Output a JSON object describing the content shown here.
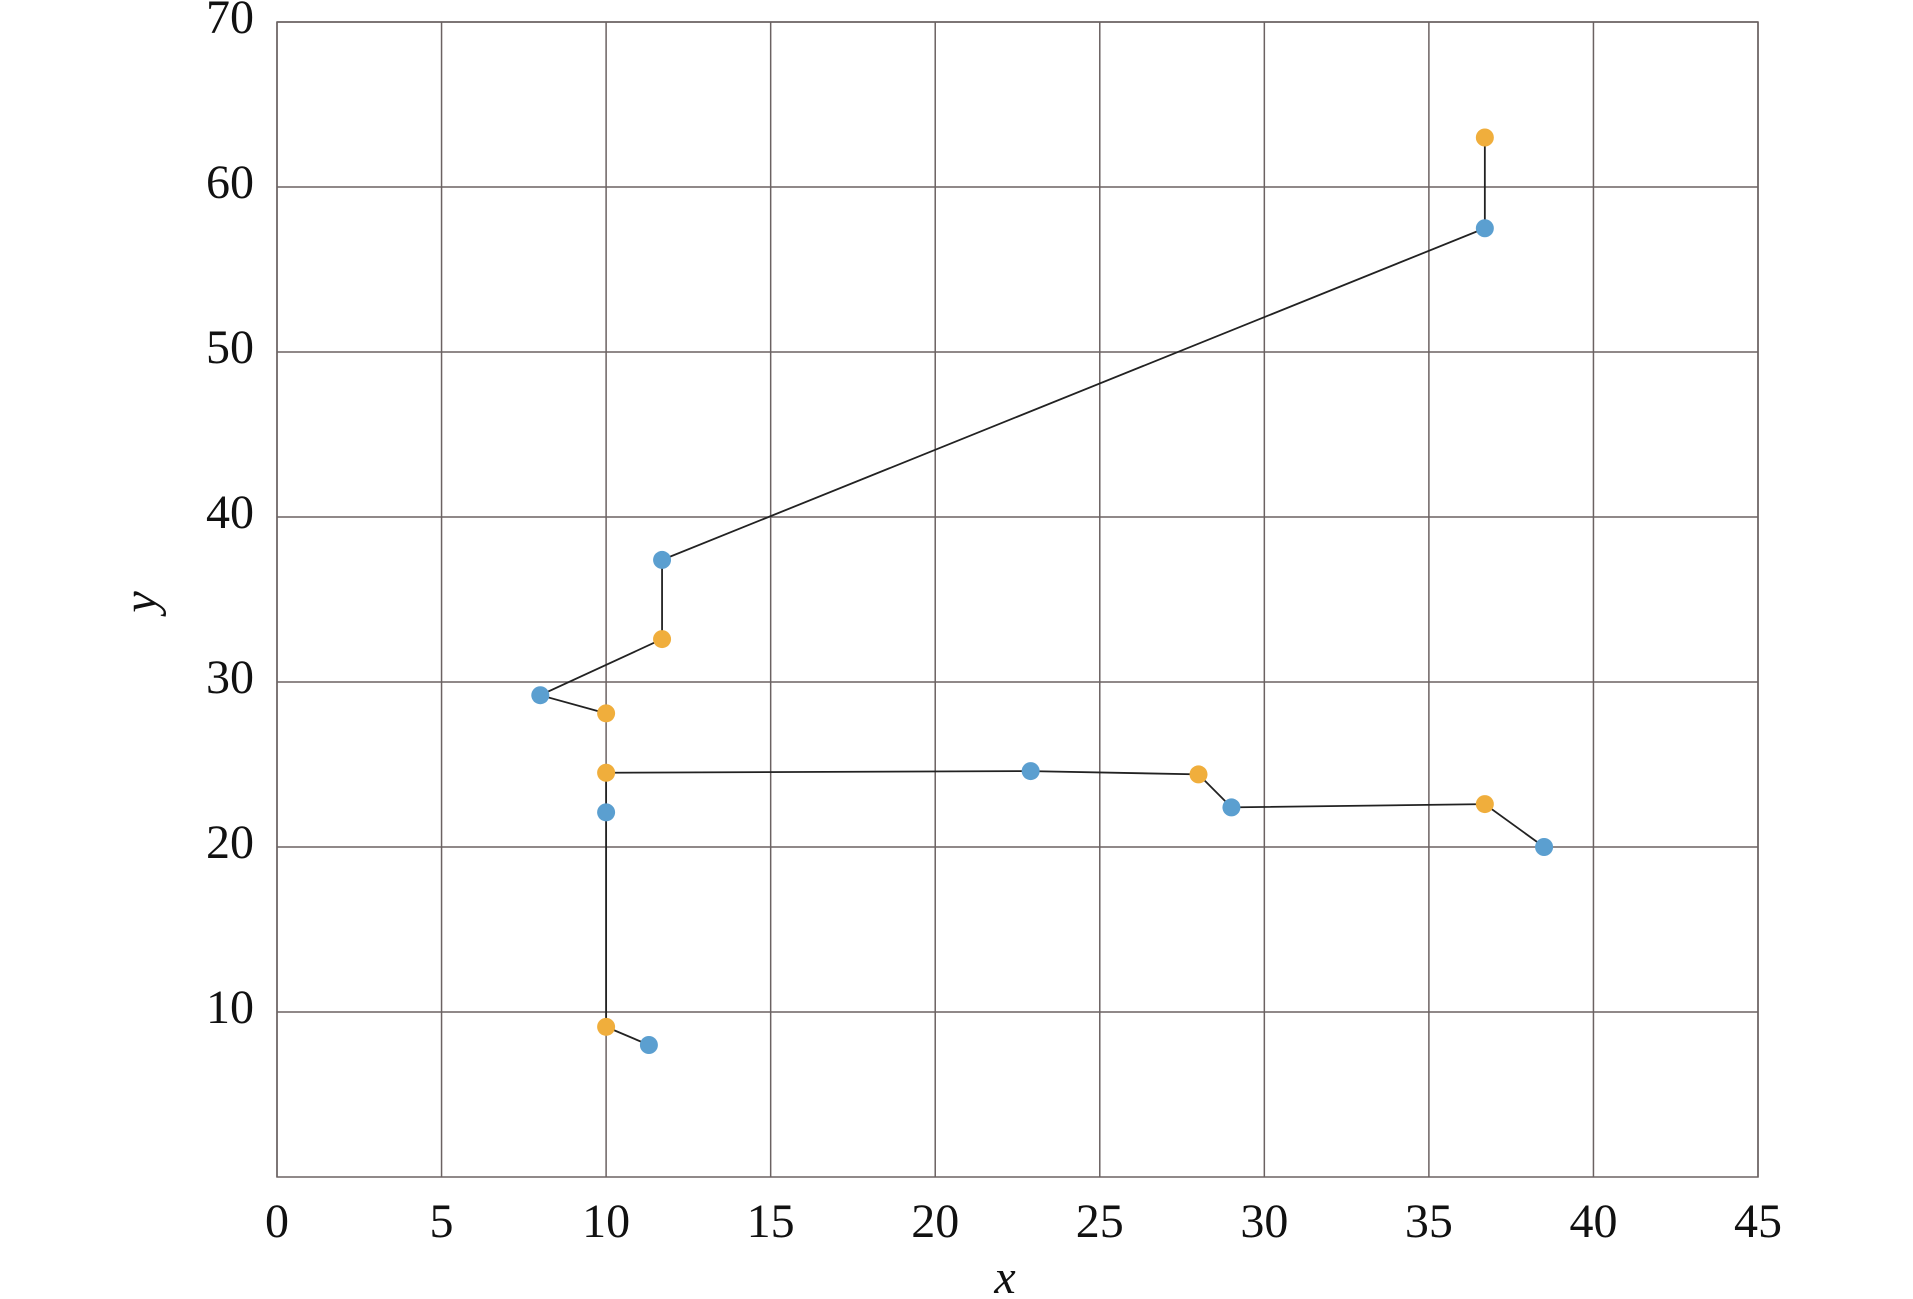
{
  "chart_data": {
    "type": "line",
    "xlabel": "x",
    "ylabel": "y",
    "x": [
      11.3,
      10,
      10,
      10,
      22.9,
      28,
      29,
      36.7,
      38.5,
      null,
      10,
      8,
      11.7,
      11.7,
      36.7,
      36.7
    ],
    "y": [
      8,
      9.1,
      22.1,
      24.5,
      24.6,
      24.4,
      22.4,
      22.6,
      20,
      null,
      28.1,
      29.2,
      32.6,
      37.4,
      57.5,
      63
    ],
    "point_colors": [
      "#5b9fd0",
      "#f0ae3c",
      "#5b9fd0",
      "#f0ae3c",
      "#5b9fd0",
      "#f0ae3c",
      "#5b9fd0",
      "#f0ae3c",
      "#5b9fd0",
      null,
      "#f0ae3c",
      "#5b9fd0",
      "#f0ae3c",
      "#5b9fd0",
      "#5b9fd0",
      "#f0ae3c"
    ],
    "line_color": "#222222",
    "xlim": [
      0,
      45
    ],
    "ylim": [
      0,
      70
    ],
    "xticks": [
      0,
      5,
      10,
      15,
      20,
      25,
      30,
      35,
      40,
      45
    ],
    "yticks": [
      10,
      20,
      30,
      40,
      50,
      60,
      70
    ],
    "grid": true
  }
}
